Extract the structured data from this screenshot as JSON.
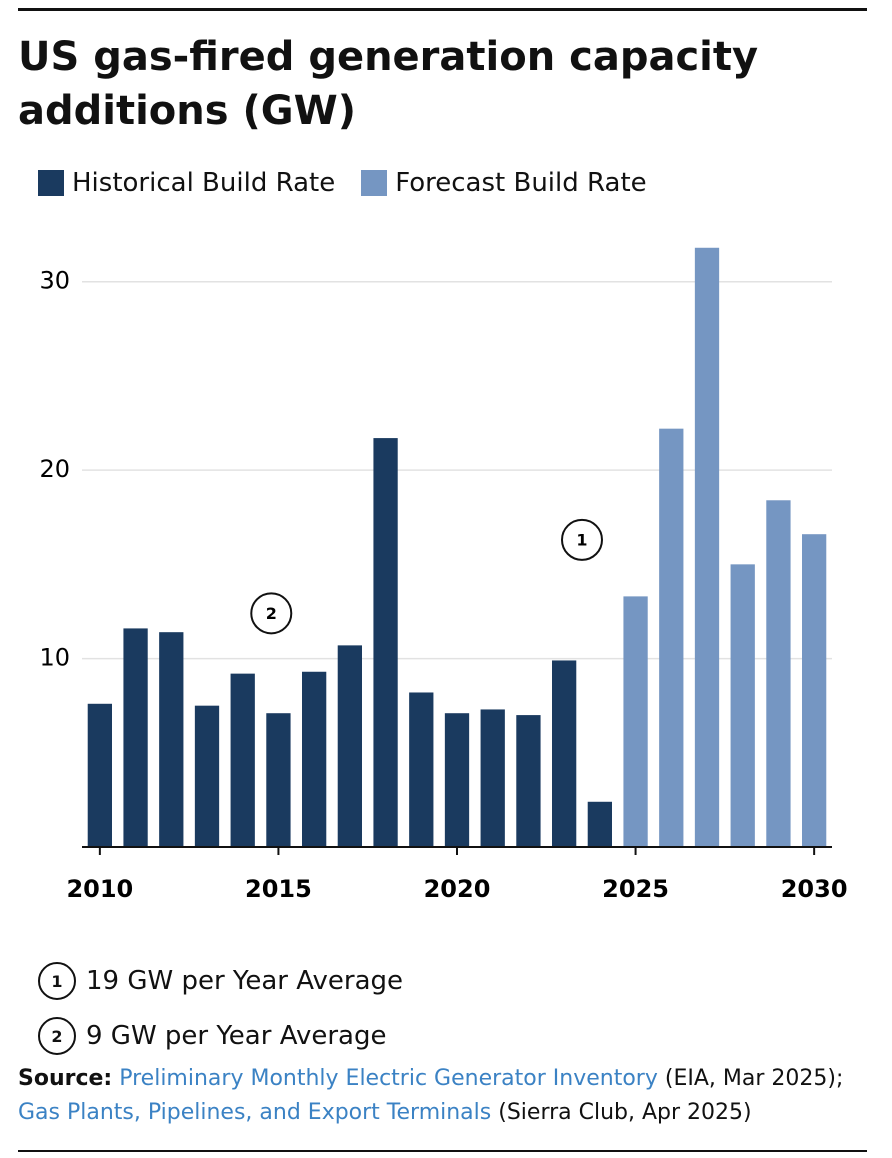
{
  "chart_data": {
    "type": "bar",
    "title": "US gas-fired generation capacity additions (GW)",
    "x": [
      2010,
      2011,
      2012,
      2013,
      2014,
      2015,
      2016,
      2017,
      2018,
      2019,
      2020,
      2021,
      2022,
      2023,
      2024,
      2025,
      2026,
      2027,
      2028,
      2029,
      2030
    ],
    "series": [
      {
        "name": "Historical Build Rate",
        "color": "#1a3a5f",
        "values": [
          7.6,
          11.6,
          11.4,
          7.5,
          9.2,
          7.1,
          9.3,
          10.7,
          21.7,
          8.2,
          7.1,
          7.3,
          7.0,
          9.9,
          2.4,
          null,
          null,
          null,
          null,
          null,
          null
        ]
      },
      {
        "name": "Forecast Build Rate",
        "color": "#7596c2",
        "values": [
          null,
          null,
          null,
          null,
          null,
          null,
          null,
          null,
          null,
          null,
          null,
          null,
          null,
          null,
          null,
          13.3,
          22.2,
          31.8,
          15.0,
          18.4,
          16.6
        ]
      }
    ],
    "xlim": [
      2009.5,
      2030.5
    ],
    "xticks": [
      2010,
      2015,
      2020,
      2025,
      2030
    ],
    "ylim": [
      0,
      32
    ],
    "yticks": [
      10,
      20,
      30
    ],
    "grid": true,
    "annotations": [
      {
        "label": "1",
        "x": 2023.5,
        "y": 16.3
      },
      {
        "label": "2",
        "x": 2014.8,
        "y": 12.4
      }
    ],
    "notes": [
      {
        "marker": "1",
        "text": "19 GW per Year Average"
      },
      {
        "marker": "2",
        "text": "9 GW per Year Average"
      }
    ],
    "source": {
      "label": "Source:",
      "link1": "Preliminary Monthly Electric Generator Inventory",
      "text1": "(EIA, Mar 2025);",
      "link2": "Gas Plants, Pipelines, and Export Terminals",
      "text2": "(Sierra Club, Apr 2025)"
    }
  }
}
